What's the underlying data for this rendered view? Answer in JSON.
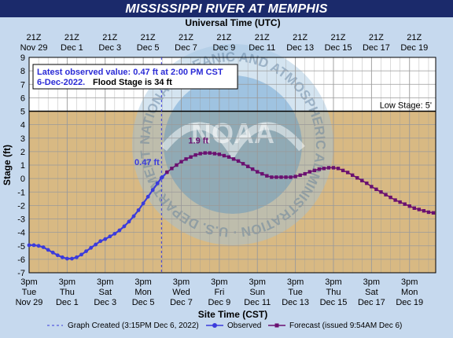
{
  "header": {
    "title": "MISSISSIPPI RIVER AT MEMPHIS"
  },
  "colors": {
    "title_bg": "#1b2a6b",
    "page_bg": "#c6d9ee",
    "normal_band": "#ffffff",
    "low_band": "#d8b983",
    "observed": "#3b3bdc",
    "forecast": "#6a1070",
    "grid": "#9a9a9a"
  },
  "info_box": {
    "line1": "Latest observed value: 0.47 ft at 2:00 PM CST",
    "line2_date": "6-Dec-2022.",
    "line2_flood": "Flood Stage is 34 ft"
  },
  "watermark": {
    "logo_text": "NOAA",
    "ring_text": "NATIONAL OCEANIC AND ATMOSPHERIC ADMINISTRATION · U.S. DEPARTMENT OF COMMERCE"
  },
  "legend": {
    "created": "Graph Created (3:15PM Dec 6, 2022)",
    "observed": "Observed",
    "forecast": "Forecast (issued 9:54AM Dec 6)"
  },
  "chart_data": {
    "type": "line",
    "title": "MISSISSIPPI RIVER AT MEMPHIS",
    "xlabel": "Site Time (CST)",
    "x2label": "Universal Time (UTC)",
    "ylabel": "Stage (ft)",
    "ylim": [
      -7,
      9
    ],
    "x_unit": "days since 3pm Tue Nov 29 (CST)",
    "xlim": [
      0,
      21.375
    ],
    "yticks": [
      -7,
      -6,
      -5,
      -4,
      -3,
      -2,
      -1,
      0,
      1,
      2,
      3,
      4,
      5,
      6,
      7,
      8,
      9
    ],
    "grid": true,
    "bottom_ticks": [
      {
        "line1": "3pm",
        "line2": "Tue",
        "line3": "Nov 29"
      },
      {
        "line1": "3pm",
        "line2": "Thu",
        "line3": "Dec 1"
      },
      {
        "line1": "3pm",
        "line2": "Sat",
        "line3": "Dec 3"
      },
      {
        "line1": "3pm",
        "line2": "Mon",
        "line3": "Dec 5"
      },
      {
        "line1": "3pm",
        "line2": "Wed",
        "line3": "Dec 7"
      },
      {
        "line1": "3pm",
        "line2": "Fri",
        "line3": "Dec 9"
      },
      {
        "line1": "3pm",
        "line2": "Sun",
        "line3": "Dec 11"
      },
      {
        "line1": "3pm",
        "line2": "Tue",
        "line3": "Dec 13"
      },
      {
        "line1": "3pm",
        "line2": "Thu",
        "line3": "Dec 15"
      },
      {
        "line1": "3pm",
        "line2": "Sat",
        "line3": "Dec 17"
      },
      {
        "line1": "3pm",
        "line2": "Mon",
        "line3": "Dec 19"
      }
    ],
    "top_ticks": [
      {
        "line1": "21Z",
        "line2": "Nov 29"
      },
      {
        "line1": "21Z",
        "line2": "Dec 1"
      },
      {
        "line1": "21Z",
        "line2": "Dec 3"
      },
      {
        "line1": "21Z",
        "line2": "Dec 5"
      },
      {
        "line1": "21Z",
        "line2": "Dec 7"
      },
      {
        "line1": "21Z",
        "line2": "Dec 9"
      },
      {
        "line1": "21Z",
        "line2": "Dec 11"
      },
      {
        "line1": "21Z",
        "line2": "Dec 13"
      },
      {
        "line1": "21Z",
        "line2": "Dec 15"
      },
      {
        "line1": "21Z",
        "line2": "Dec 17"
      },
      {
        "line1": "21Z",
        "line2": "Dec 19"
      }
    ],
    "low_stage": {
      "value": 5,
      "label": "Low Stage: 5'"
    },
    "graph_created_x": 6.96,
    "annotations": [
      {
        "text": "0.47 ft",
        "x": 6.2,
        "y": 1.0,
        "series": "observed"
      },
      {
        "text": "1.9 ft",
        "x": 8.9,
        "y": 2.6,
        "series": "forecast"
      }
    ],
    "series": [
      {
        "name": "Observed",
        "points": [
          [
            0,
            -4.95
          ],
          [
            0.25,
            -4.95
          ],
          [
            0.5,
            -5.0
          ],
          [
            0.75,
            -5.1
          ],
          [
            1.0,
            -5.3
          ],
          [
            1.25,
            -5.5
          ],
          [
            1.5,
            -5.7
          ],
          [
            1.75,
            -5.85
          ],
          [
            2.0,
            -5.95
          ],
          [
            2.25,
            -5.95
          ],
          [
            2.5,
            -5.85
          ],
          [
            2.75,
            -5.65
          ],
          [
            3.0,
            -5.4
          ],
          [
            3.25,
            -5.15
          ],
          [
            3.5,
            -4.9
          ],
          [
            3.75,
            -4.65
          ],
          [
            4.0,
            -4.5
          ],
          [
            4.25,
            -4.3
          ],
          [
            4.5,
            -4.1
          ],
          [
            4.75,
            -3.85
          ],
          [
            5.0,
            -3.55
          ],
          [
            5.25,
            -3.2
          ],
          [
            5.5,
            -2.8
          ],
          [
            5.75,
            -2.35
          ],
          [
            6.0,
            -1.85
          ],
          [
            6.25,
            -1.35
          ],
          [
            6.5,
            -0.85
          ],
          [
            6.75,
            -0.35
          ],
          [
            6.96,
            0.05
          ],
          [
            7.0,
            0.1
          ],
          [
            7.25,
            0.47
          ]
        ]
      },
      {
        "name": "Forecast",
        "points": [
          [
            7.25,
            0.47
          ],
          [
            7.5,
            0.75
          ],
          [
            7.75,
            1.0
          ],
          [
            8.0,
            1.25
          ],
          [
            8.25,
            1.45
          ],
          [
            8.5,
            1.6
          ],
          [
            8.75,
            1.75
          ],
          [
            9.0,
            1.85
          ],
          [
            9.25,
            1.9
          ],
          [
            9.5,
            1.9
          ],
          [
            9.75,
            1.85
          ],
          [
            10.0,
            1.8
          ],
          [
            10.25,
            1.7
          ],
          [
            10.5,
            1.6
          ],
          [
            10.75,
            1.45
          ],
          [
            11.0,
            1.3
          ],
          [
            11.25,
            1.1
          ],
          [
            11.5,
            0.9
          ],
          [
            11.75,
            0.7
          ],
          [
            12.0,
            0.5
          ],
          [
            12.25,
            0.35
          ],
          [
            12.5,
            0.2
          ],
          [
            12.75,
            0.1
          ],
          [
            13.0,
            0.1
          ],
          [
            13.25,
            0.1
          ],
          [
            13.5,
            0.1
          ],
          [
            13.75,
            0.1
          ],
          [
            14.0,
            0.15
          ],
          [
            14.25,
            0.25
          ],
          [
            14.5,
            0.35
          ],
          [
            14.75,
            0.5
          ],
          [
            15.0,
            0.6
          ],
          [
            15.25,
            0.7
          ],
          [
            15.5,
            0.75
          ],
          [
            15.75,
            0.8
          ],
          [
            16.0,
            0.8
          ],
          [
            16.25,
            0.75
          ],
          [
            16.5,
            0.6
          ],
          [
            16.75,
            0.45
          ],
          [
            17.0,
            0.25
          ],
          [
            17.25,
            0.05
          ],
          [
            17.5,
            -0.15
          ],
          [
            17.75,
            -0.35
          ],
          [
            18.0,
            -0.6
          ],
          [
            18.25,
            -0.8
          ],
          [
            18.5,
            -1.0
          ],
          [
            18.75,
            -1.2
          ],
          [
            19.0,
            -1.4
          ],
          [
            19.25,
            -1.6
          ],
          [
            19.5,
            -1.75
          ],
          [
            19.75,
            -1.9
          ],
          [
            20.0,
            -2.05
          ],
          [
            20.25,
            -2.2
          ],
          [
            20.5,
            -2.3
          ],
          [
            20.75,
            -2.4
          ],
          [
            21.0,
            -2.5
          ],
          [
            21.25,
            -2.55
          ]
        ]
      }
    ]
  }
}
